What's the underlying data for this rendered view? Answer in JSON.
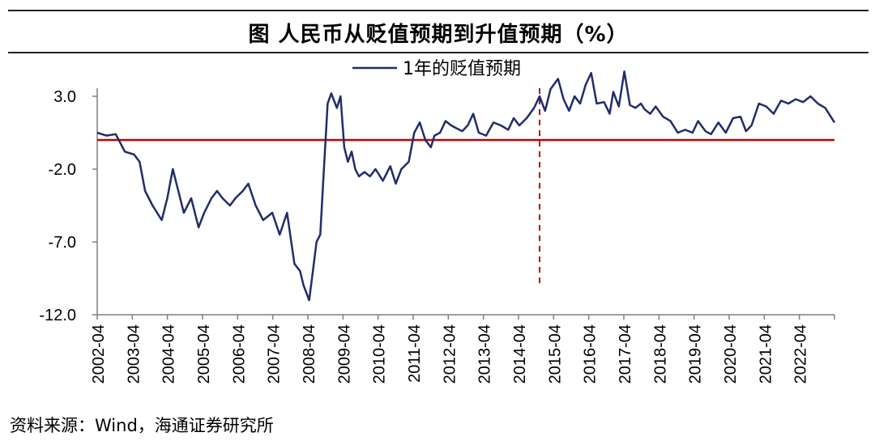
{
  "title": "图  人民币从贬值预期到升值预期（%）",
  "source": "资料来源：Wind，海通证券研究所",
  "colors": {
    "series": "#1f2d6b",
    "reference": "#c00000",
    "axis": "#7f7f7f"
  },
  "chart_data": {
    "type": "line",
    "ylim": [
      -12,
      5.5
    ],
    "yticks": [
      3.0,
      -2.0,
      -7.0,
      -12.0
    ],
    "ytick_labels": [
      "3.0",
      "-2.0",
      "-7.0",
      "-12.0"
    ],
    "xlim": [
      2002.25,
      2022.25
    ],
    "xtick_labels": [
      "2002-04",
      "2003-04",
      "2004-04",
      "2005-04",
      "2006-04",
      "2007-04",
      "2008-04",
      "2009-04",
      "2010-04",
      "2011-04",
      "2012-04",
      "2013-04",
      "2014-04",
      "2015-04",
      "2016-04",
      "2017-04",
      "2018-04",
      "2019-04",
      "2020-04",
      "2021-04",
      "2022-04"
    ],
    "legend": {
      "label": "1年的贬值预期",
      "placement": "top-center"
    },
    "reference_line_y": 0,
    "vertical_marker_x": 2014.25,
    "series": [
      {
        "name": "1年的贬值预期",
        "x": [
          2002.25,
          2002.5,
          2002.75,
          2003.0,
          2003.25,
          2003.4,
          2003.55,
          2003.75,
          2004.0,
          2004.15,
          2004.3,
          2004.45,
          2004.6,
          2004.8,
          2005.0,
          2005.15,
          2005.35,
          2005.5,
          2005.65,
          2005.85,
          2006.0,
          2006.2,
          2006.35,
          2006.55,
          2006.75,
          2007.0,
          2007.2,
          2007.4,
          2007.6,
          2007.75,
          2007.85,
          2008.0,
          2008.1,
          2008.2,
          2008.3,
          2008.4,
          2008.5,
          2008.6,
          2008.75,
          2008.85,
          2008.95,
          2009.05,
          2009.15,
          2009.25,
          2009.35,
          2009.5,
          2009.65,
          2009.8,
          2010.0,
          2010.2,
          2010.35,
          2010.5,
          2010.7,
          2010.85,
          2011.0,
          2011.15,
          2011.3,
          2011.4,
          2011.55,
          2011.7,
          2011.85,
          2012.0,
          2012.15,
          2012.3,
          2012.45,
          2012.6,
          2012.8,
          2013.0,
          2013.2,
          2013.4,
          2013.55,
          2013.7,
          2013.9,
          2014.1,
          2014.25,
          2014.4,
          2014.55,
          2014.75,
          2014.9,
          2015.05,
          2015.2,
          2015.35,
          2015.5,
          2015.65,
          2015.8,
          2016.0,
          2016.15,
          2016.25,
          2016.4,
          2016.55,
          2016.7,
          2016.85,
          2017.0,
          2017.1,
          2017.25,
          2017.4,
          2017.6,
          2017.8,
          2018.0,
          2018.2,
          2018.4,
          2018.55,
          2018.75,
          2018.9,
          2019.1,
          2019.3,
          2019.5,
          2019.7,
          2019.85,
          2020.0,
          2020.2,
          2020.4,
          2020.6,
          2020.8,
          2021.0,
          2021.2,
          2021.4,
          2021.6,
          2021.8,
          2022.0,
          2022.25
        ],
        "values": [
          0.5,
          0.3,
          0.4,
          -0.8,
          -1.0,
          -1.5,
          -3.5,
          -4.5,
          -5.5,
          -4.0,
          -2.0,
          -3.5,
          -5.0,
          -4.0,
          -6.0,
          -5.0,
          -4.0,
          -3.5,
          -4.0,
          -4.5,
          -4.0,
          -3.5,
          -3.0,
          -4.5,
          -5.5,
          -5.0,
          -6.5,
          -5.0,
          -8.5,
          -9.0,
          -10.0,
          -11.0,
          -9.0,
          -7.0,
          -6.5,
          -2.0,
          2.5,
          3.2,
          2.2,
          3.0,
          -0.5,
          -1.5,
          -0.8,
          -2.0,
          -2.5,
          -2.2,
          -2.5,
          -2.0,
          -2.8,
          -1.8,
          -3.0,
          -2.0,
          -1.5,
          0.5,
          1.2,
          0.0,
          -0.5,
          0.3,
          0.5,
          1.3,
          1.0,
          0.8,
          0.6,
          1.0,
          1.8,
          0.5,
          0.3,
          1.2,
          1.0,
          0.7,
          1.5,
          1.0,
          1.5,
          2.2,
          3.0,
          2.0,
          3.5,
          4.2,
          2.8,
          2.0,
          3.0,
          2.5,
          3.8,
          4.6,
          2.5,
          2.6,
          1.8,
          3.3,
          2.3,
          4.7,
          2.4,
          2.2,
          2.5,
          2.1,
          1.8,
          2.3,
          1.6,
          1.3,
          0.5,
          0.7,
          0.5,
          1.3,
          0.6,
          0.4,
          1.2,
          0.5,
          1.5,
          1.6,
          0.6,
          1.0,
          2.5,
          2.3,
          1.8,
          2.7,
          2.5,
          2.8,
          2.6,
          3.0,
          2.5,
          2.2,
          1.2
        ]
      }
    ]
  }
}
